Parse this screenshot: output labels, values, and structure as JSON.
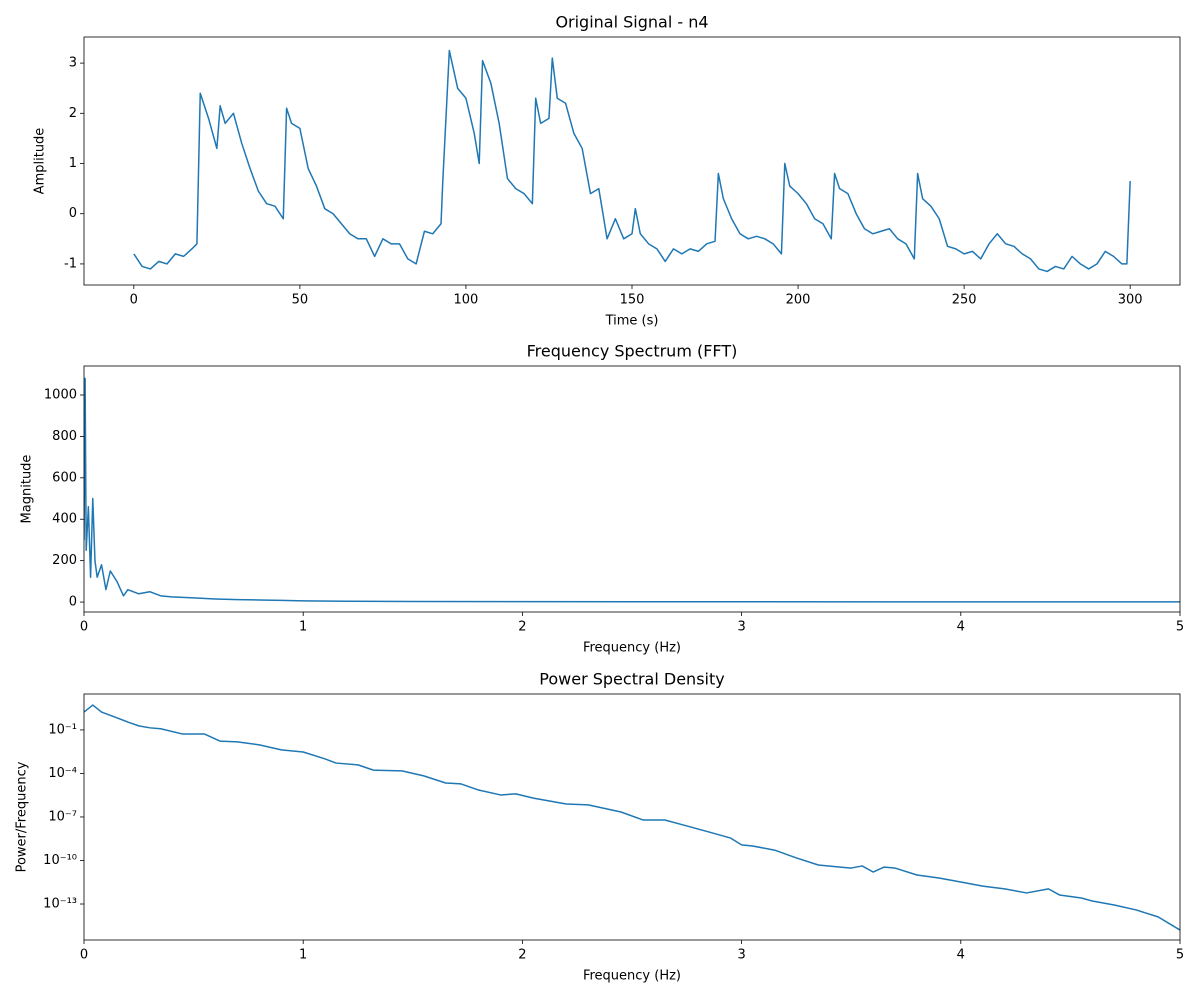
{
  "chart_data": [
    {
      "type": "line",
      "title": "Original Signal - n4",
      "xlabel": "Time (s)",
      "ylabel": "Amplitude",
      "color": "#1f77b4",
      "x": [
        0,
        2.5,
        5,
        7.5,
        10,
        12.5,
        15,
        17.5,
        19,
        20,
        22.5,
        25,
        26,
        27.5,
        30,
        32.5,
        35,
        37.5,
        40,
        42.5,
        45,
        46,
        47.5,
        50,
        52.5,
        55,
        57.5,
        60,
        62.5,
        65,
        67.5,
        70,
        72.5,
        75,
        77.5,
        80,
        82.5,
        85,
        87.5,
        90,
        92.5,
        93,
        95,
        97.5,
        100,
        102.5,
        104,
        105,
        107.5,
        110,
        112.5,
        115,
        117.5,
        120,
        121,
        122.5,
        125,
        126,
        127.5,
        130,
        132.5,
        135,
        137.5,
        140,
        142.5,
        145,
        147.5,
        150,
        151,
        152.5,
        155,
        157.5,
        160,
        162.5,
        165,
        167.5,
        170,
        172.5,
        175,
        176,
        177.5,
        180,
        182.5,
        185,
        187.5,
        190,
        192.5,
        195,
        196,
        197.5,
        200,
        202.5,
        205,
        207.5,
        210,
        211,
        212.5,
        215,
        217.5,
        220,
        222.5,
        225,
        227.5,
        230,
        232.5,
        235,
        236,
        237.5,
        240,
        242.5,
        245,
        247.5,
        250,
        252.5,
        255,
        257.5,
        260,
        262.5,
        265,
        267.5,
        270,
        272.5,
        275,
        277.5,
        280,
        282.5,
        285,
        287.5,
        290,
        292.5,
        295,
        297.5,
        299,
        300
      ],
      "values": [
        -0.8,
        -1.05,
        -1.1,
        -0.95,
        -1.0,
        -0.8,
        -0.85,
        -0.7,
        -0.6,
        2.4,
        1.9,
        1.3,
        2.15,
        1.8,
        2.0,
        1.4,
        0.9,
        0.45,
        0.2,
        0.15,
        -0.1,
        2.1,
        1.8,
        1.7,
        0.9,
        0.55,
        0.1,
        0.0,
        -0.2,
        -0.4,
        -0.5,
        -0.5,
        -0.85,
        -0.5,
        -0.6,
        -0.6,
        -0.9,
        -1.0,
        -0.35,
        -0.4,
        -0.2,
        0.6,
        3.25,
        2.5,
        2.3,
        1.6,
        1.0,
        3.05,
        2.6,
        1.8,
        0.7,
        0.5,
        0.4,
        0.2,
        2.3,
        1.8,
        1.9,
        3.1,
        2.3,
        2.2,
        1.6,
        1.3,
        0.4,
        0.5,
        -0.5,
        -0.1,
        -0.5,
        -0.4,
        0.1,
        -0.4,
        -0.6,
        -0.7,
        -0.95,
        -0.7,
        -0.8,
        -0.7,
        -0.75,
        -0.6,
        -0.55,
        0.8,
        0.3,
        -0.1,
        -0.4,
        -0.5,
        -0.45,
        -0.5,
        -0.6,
        -0.8,
        1.0,
        0.55,
        0.4,
        0.2,
        -0.1,
        -0.2,
        -0.5,
        0.8,
        0.5,
        0.4,
        0.0,
        -0.3,
        -0.4,
        -0.35,
        -0.3,
        -0.5,
        -0.6,
        -0.9,
        0.8,
        0.3,
        0.15,
        -0.1,
        -0.65,
        -0.7,
        -0.8,
        -0.75,
        -0.9,
        -0.6,
        -0.4,
        -0.6,
        -0.65,
        -0.8,
        -0.9,
        -1.1,
        -1.15,
        -1.05,
        -1.1,
        -0.85,
        -1.0,
        -1.1,
        -1.0,
        -0.75,
        -0.85,
        -1.0,
        -1.0,
        0.65
      ],
      "xlim": [
        -15,
        315
      ],
      "xticks": [
        0,
        50,
        100,
        150,
        200,
        250,
        300
      ],
      "ylim": [
        -1.42,
        3.52
      ],
      "yticks": [
        -1,
        0,
        1,
        2,
        3
      ]
    },
    {
      "type": "line",
      "title": "Frequency Spectrum (FFT)",
      "xlabel": "Frequency (Hz)",
      "ylabel": "Magnitude",
      "color": "#1f77b4",
      "x": [
        0,
        0.005,
        0.01,
        0.02,
        0.03,
        0.04,
        0.05,
        0.06,
        0.08,
        0.1,
        0.12,
        0.15,
        0.18,
        0.2,
        0.25,
        0.3,
        0.35,
        0.4,
        0.5,
        0.6,
        0.7,
        0.8,
        0.9,
        1.0,
        1.2,
        1.5,
        2,
        3,
        4,
        5
      ],
      "values": [
        300,
        1080,
        250,
        460,
        120,
        500,
        200,
        120,
        180,
        60,
        150,
        100,
        30,
        60,
        40,
        50,
        30,
        25,
        20,
        15,
        12,
        10,
        8,
        6,
        4,
        3,
        2,
        1.5,
        1,
        1
      ],
      "xlim": [
        0,
        5
      ],
      "xticks": [
        0,
        1,
        2,
        3,
        4,
        5
      ],
      "ylim": [
        -48,
        1140
      ],
      "yticks": [
        0,
        200,
        400,
        600,
        800,
        1000
      ]
    },
    {
      "type": "line",
      "title": "Power Spectral Density",
      "xlabel": "Frequency (Hz)",
      "ylabel": "Power/Frequency",
      "color": "#1f77b4",
      "yscale": "log",
      "x": [
        0,
        0.04,
        0.08,
        0.15,
        0.2,
        0.25,
        0.3,
        0.35,
        0.45,
        0.55,
        0.62,
        0.7,
        0.8,
        0.9,
        1.0,
        1.1,
        1.15,
        1.25,
        1.32,
        1.45,
        1.55,
        1.65,
        1.72,
        1.8,
        1.9,
        1.97,
        2.05,
        2.2,
        2.3,
        2.45,
        2.55,
        2.65,
        2.75,
        2.85,
        2.95,
        3.0,
        3.05,
        3.15,
        3.25,
        3.35,
        3.45,
        3.5,
        3.55,
        3.6,
        3.65,
        3.7,
        3.8,
        3.9,
        4.0,
        4.1,
        4.2,
        4.3,
        4.4,
        4.45,
        4.55,
        4.6,
        4.7,
        4.8,
        4.9,
        5.0
      ],
      "values": [
        1.7,
        5.2,
        1.7,
        0.68,
        0.35,
        0.19,
        0.14,
        0.12,
        0.052,
        0.052,
        0.017,
        0.015,
        0.0093,
        0.0042,
        0.003,
        0.001,
        0.00052,
        0.00039,
        0.00017,
        0.00015,
        6.8e-05,
        2.2e-05,
        1.9e-05,
        7.2e-06,
        3.3e-06,
        3.9e-06,
        2e-06,
        7.9e-07,
        6.8e-07,
        2.2e-07,
        6.2e-08,
        6.2e-08,
        2.4e-08,
        9.3e-09,
        3.5e-09,
        1.2e-09,
        1e-09,
        5.2e-10,
        1.5e-10,
        4.9e-11,
        3.5e-11,
        3e-11,
        4.2e-11,
        1.6e-11,
        3.5e-11,
        3e-11,
        1e-11,
        6.2e-12,
        3.3e-12,
        1.7e-12,
        1.1e-12,
        5.8e-13,
        1.1e-12,
        4.2e-13,
        2.6e-13,
        1.6e-13,
        8.5e-14,
        3.9e-14,
        1.3e-14,
        1.6e-15
      ],
      "xlim": [
        0,
        5
      ],
      "xticks": [
        0,
        1,
        2,
        3,
        4,
        5
      ],
      "ylim": [
        3.3e-16,
        30
      ],
      "yticks": [
        {
          "value": 0.1,
          "label": "10⁻¹"
        },
        {
          "value": 0.0001,
          "label": "10⁻⁴"
        },
        {
          "value": 1e-07,
          "label": "10⁻⁷"
        },
        {
          "value": 1e-10,
          "label": "10⁻¹⁰"
        },
        {
          "value": 1e-13,
          "label": "10⁻¹³"
        }
      ]
    }
  ]
}
